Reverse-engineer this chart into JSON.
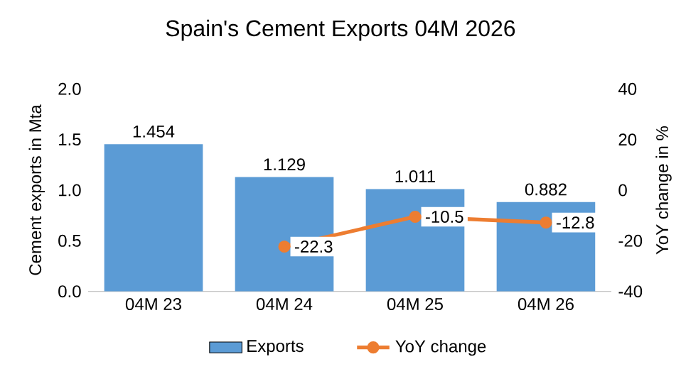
{
  "chart_data": {
    "type": "bar",
    "title": "Spain's Cement Exports 04M 2026",
    "categories": [
      "04M 23",
      "04M 24",
      "04M 25",
      "04M 26"
    ],
    "series": [
      {
        "name": "Exports",
        "color": "#5b9bd5",
        "values": [
          1.454,
          1.129,
          1.011,
          0.882
        ]
      },
      {
        "name": "YoY change",
        "type": "line",
        "axis": "y2",
        "color": "#ed7d31",
        "marker": "circle",
        "values": [
          null,
          -22.3,
          -10.5,
          -12.8
        ]
      }
    ],
    "ylabel": "Cement exports in Mta",
    "y2label": "YoY change in %",
    "ylim": [
      0,
      2
    ],
    "yticks": [
      {
        "value": 0,
        "label": "0.0"
      },
      {
        "value": 0.5,
        "label": "0.5"
      },
      {
        "value": 1,
        "label": "1.0"
      },
      {
        "value": 1.5,
        "label": "1.5"
      },
      {
        "value": 2,
        "label": "2.0"
      }
    ],
    "y2lim": [
      -40,
      40
    ],
    "y2ticks": [
      -40,
      -20,
      0,
      20,
      40
    ],
    "data_labels": true,
    "legend": "bottom"
  }
}
